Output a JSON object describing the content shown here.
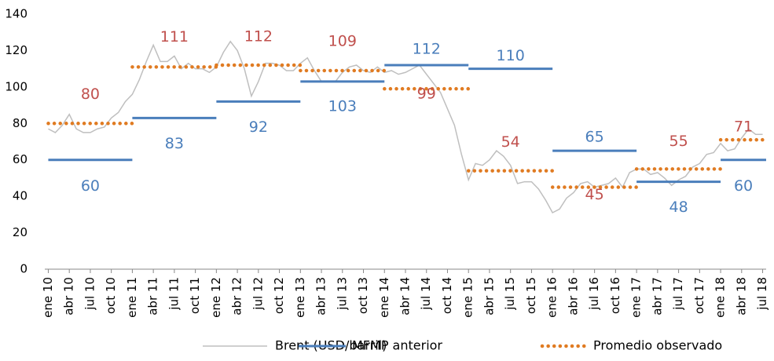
{
  "chart_data": {
    "type": "line",
    "xlim": [
      -0.5,
      102.5
    ],
    "xticks": [
      {
        "value": 0,
        "label": "ene 10"
      },
      {
        "value": 3,
        "label": "abr 10"
      },
      {
        "value": 6,
        "label": "jul 10"
      },
      {
        "value": 9,
        "label": "oct 10"
      },
      {
        "value": 12,
        "label": "ene 11"
      },
      {
        "value": 15,
        "label": "abr 11"
      },
      {
        "value": 18,
        "label": "jul 11"
      },
      {
        "value": 21,
        "label": "oct 11"
      },
      {
        "value": 24,
        "label": "ene 12"
      },
      {
        "value": 27,
        "label": "abr 12"
      },
      {
        "value": 30,
        "label": "jul 12"
      },
      {
        "value": 33,
        "label": "oct 12"
      },
      {
        "value": 36,
        "label": "ene 13"
      },
      {
        "value": 39,
        "label": "abr 13"
      },
      {
        "value": 42,
        "label": "jul 13"
      },
      {
        "value": 45,
        "label": "oct 13"
      },
      {
        "value": 48,
        "label": "ene 14"
      },
      {
        "value": 51,
        "label": "abr 14"
      },
      {
        "value": 54,
        "label": "jul 14"
      },
      {
        "value": 57,
        "label": "oct 14"
      },
      {
        "value": 60,
        "label": "ene 15"
      },
      {
        "value": 63,
        "label": "abr 15"
      },
      {
        "value": 66,
        "label": "jul 15"
      },
      {
        "value": 69,
        "label": "oct 15"
      },
      {
        "value": 72,
        "label": "ene 16"
      },
      {
        "value": 75,
        "label": "abr 16"
      },
      {
        "value": 78,
        "label": "jul 16"
      },
      {
        "value": 81,
        "label": "oct 16"
      },
      {
        "value": 84,
        "label": "ene 17"
      },
      {
        "value": 87,
        "label": "abr 17"
      },
      {
        "value": 90,
        "label": "jul 17"
      },
      {
        "value": 93,
        "label": "oct 17"
      },
      {
        "value": 96,
        "label": "ene 18"
      },
      {
        "value": 99,
        "label": "abr 18"
      },
      {
        "value": 102,
        "label": "jul 18"
      }
    ],
    "ylim": [
      0,
      140
    ],
    "yticks": [
      0,
      20,
      40,
      60,
      80,
      100,
      120,
      140
    ],
    "series": [
      {
        "name": "Brent (USD/barril)",
        "color": "#bfbfbf",
        "x": [
          0,
          1,
          2,
          3,
          4,
          5,
          6,
          7,
          8,
          9,
          10,
          11,
          12,
          13,
          14,
          15,
          16,
          17,
          18,
          19,
          20,
          21,
          22,
          23,
          24,
          25,
          26,
          27,
          28,
          29,
          30,
          31,
          32,
          33,
          34,
          35,
          36,
          37,
          38,
          39,
          40,
          41,
          42,
          43,
          44,
          45,
          46,
          47,
          48,
          49,
          50,
          51,
          52,
          53,
          54,
          55,
          56,
          57,
          58,
          59,
          60,
          61,
          62,
          63,
          64,
          65,
          66,
          67,
          68,
          69,
          70,
          71,
          72,
          73,
          74,
          75,
          76,
          77,
          78,
          79,
          80,
          81,
          82,
          83,
          84,
          85,
          86,
          87,
          88,
          89,
          90,
          91,
          92,
          93,
          94,
          95,
          96,
          97,
          98,
          99,
          100,
          101,
          102
        ],
        "values": [
          77,
          75,
          79,
          85,
          77,
          75,
          75,
          77,
          78,
          83,
          86,
          92,
          96,
          104,
          114,
          123,
          114,
          114,
          117,
          110,
          113,
          110,
          110,
          108,
          111,
          119,
          125,
          120,
          110,
          95,
          103,
          113,
          113,
          112,
          109,
          109,
          113,
          116,
          109,
          103,
          103,
          103,
          108,
          111,
          112,
          109,
          108,
          111,
          108,
          109,
          107,
          108,
          110,
          112,
          107,
          102,
          97,
          88,
          79,
          63,
          49,
          58,
          57,
          60,
          65,
          62,
          57,
          47,
          48,
          48,
          44,
          38,
          31,
          33,
          39,
          42,
          47,
          48,
          45,
          46,
          47,
          50,
          45,
          53,
          55,
          55,
          52,
          53,
          50,
          46,
          49,
          51,
          56,
          58,
          63,
          64,
          69,
          65,
          66,
          72,
          77,
          74,
          74
        ]
      },
      {
        "name": "MFMP anterior",
        "color": "#4a7ebb",
        "label_color": "#4a7ebb",
        "x": [
          0,
          12,
          24,
          36,
          48,
          60,
          72,
          84,
          96
        ],
        "values": [
          60,
          83,
          92,
          103,
          112,
          110,
          65,
          48,
          60
        ]
      },
      {
        "name": "Promedio observado",
        "color": "#e07b22",
        "label_color": "#c0504d",
        "x": [
          0,
          12,
          24,
          36,
          48,
          60,
          72,
          84,
          96
        ],
        "values": [
          80,
          111,
          112,
          109,
          99,
          54,
          45,
          55,
          71
        ]
      }
    ]
  }
}
